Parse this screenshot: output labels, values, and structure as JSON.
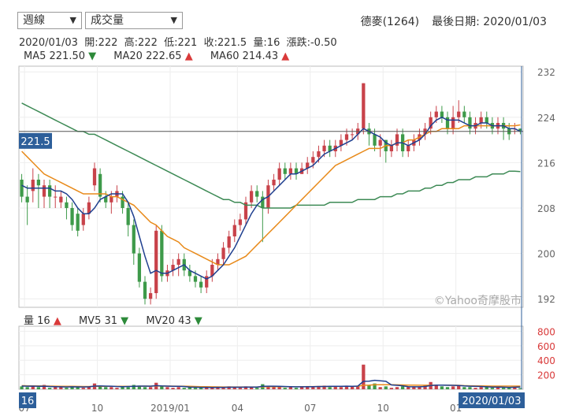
{
  "controls": {
    "period": {
      "value": "週線",
      "arrow": "▼"
    },
    "indicator": {
      "value": "成交量",
      "arrow": "▼"
    }
  },
  "stock": {
    "name": "德麥(1264)",
    "last_date_label": "最後日期: 2020/01/03"
  },
  "ohlc_line": "2020/01/03  開:222  高:222  低:221  收:221.5  量:16  漲跌:-0.50",
  "ma_legend": [
    {
      "label": "MA5 221.50",
      "arrow": "▼",
      "dir": "down",
      "color": "#1f3f8f"
    },
    {
      "label": "MA20 222.65",
      "arrow": "▲",
      "dir": "up",
      "color": "#e88a1a"
    },
    {
      "label": "MA60 214.43",
      "arrow": "▲",
      "dir": "up",
      "color": "#3d8a55"
    }
  ],
  "vol_legend": [
    {
      "label": "量 16",
      "arrow": "▲",
      "dir": "up",
      "color": "#333333"
    },
    {
      "label": "MV5 31",
      "arrow": "▼",
      "dir": "down",
      "color": "#1f3f8f"
    },
    {
      "label": "MV20 43",
      "arrow": "▼",
      "dir": "down",
      "color": "#e88a1a"
    }
  ],
  "watermark": "©Yahoo奇摩股市",
  "price_badge": "221.5",
  "volume_badge": "16",
  "date_badge": "2020/01/03",
  "colors": {
    "up": "#c8424a",
    "down": "#3e9a4a",
    "ma5": "#1f3f8f",
    "ma20": "#e88a1a",
    "ma60": "#3d8a55",
    "badge": "#2d5f9a"
  },
  "chart_data": {
    "type": "candlestick",
    "x_tick_labels": [
      "07",
      "10",
      "2019/01",
      "04",
      "07",
      "10",
      "01"
    ],
    "x_tick_index": [
      1,
      14,
      27,
      39,
      52,
      65,
      78
    ],
    "y_ticks_price": [
      192,
      200,
      208,
      216,
      224,
      232
    ],
    "y_ticks_volume": [
      200,
      400,
      600,
      800
    ],
    "price_ylim": [
      190.5,
      233
    ],
    "volume_ylim": [
      0,
      870
    ],
    "candles": [
      [
        213,
        210,
        214,
        209
      ],
      [
        210,
        209,
        212,
        205
      ],
      [
        211,
        213,
        215,
        209
      ],
      [
        213,
        212,
        214,
        208
      ],
      [
        210,
        212,
        213,
        208
      ],
      [
        212,
        210,
        213,
        208
      ],
      [
        210,
        210,
        212,
        208
      ],
      [
        209,
        210,
        211,
        208
      ],
      [
        209,
        208,
        210,
        206
      ],
      [
        208,
        205,
        209,
        204
      ],
      [
        207,
        204,
        208,
        203
      ],
      [
        205,
        207,
        208,
        204
      ],
      [
        207,
        209,
        210,
        206
      ],
      [
        212,
        215,
        216,
        211
      ],
      [
        214,
        210,
        215,
        209
      ],
      [
        210,
        209,
        211,
        208
      ],
      [
        209,
        210,
        211,
        207
      ],
      [
        210,
        211,
        212,
        209
      ],
      [
        210,
        208,
        211,
        207
      ],
      [
        208,
        205,
        209,
        203
      ],
      [
        205,
        200,
        206,
        198
      ],
      [
        200,
        195,
        201,
        194
      ],
      [
        195,
        192,
        196,
        191
      ],
      [
        192,
        193,
        194,
        191
      ],
      [
        193,
        204,
        205,
        192
      ],
      [
        204,
        196,
        205,
        195
      ],
      [
        196,
        197,
        198,
        195
      ],
      [
        197,
        198,
        199,
        196
      ],
      [
        198,
        199,
        200,
        196
      ],
      [
        199,
        197,
        200,
        196
      ],
      [
        197,
        196,
        198,
        195
      ],
      [
        196,
        195,
        197,
        194
      ],
      [
        195,
        194,
        196,
        193
      ],
      [
        194,
        196,
        197,
        193
      ],
      [
        196,
        198,
        199,
        195
      ],
      [
        198,
        199,
        200,
        197
      ],
      [
        199,
        201,
        202,
        198
      ],
      [
        201,
        203,
        204,
        200
      ],
      [
        203,
        205,
        206,
        202
      ],
      [
        205,
        206,
        207,
        204
      ],
      [
        206,
        209,
        210,
        205
      ],
      [
        209,
        211,
        212,
        208
      ],
      [
        211,
        210,
        212,
        209
      ],
      [
        210,
        208,
        211,
        202
      ],
      [
        208,
        212,
        213,
        207
      ],
      [
        212,
        213,
        214,
        211
      ],
      [
        213,
        215,
        216,
        212
      ],
      [
        215,
        214,
        216,
        213
      ],
      [
        214,
        215,
        216,
        213
      ],
      [
        215,
        214,
        216,
        213
      ],
      [
        214,
        215,
        216,
        214
      ],
      [
        215,
        216,
        217,
        214
      ],
      [
        216,
        217,
        218,
        215
      ],
      [
        217,
        218,
        219,
        216
      ],
      [
        218,
        219,
        220,
        217
      ],
      [
        219,
        218,
        220,
        217
      ],
      [
        218,
        219,
        220,
        217
      ],
      [
        219,
        220,
        221,
        218
      ],
      [
        220,
        221,
        222,
        219
      ],
      [
        221,
        221,
        222,
        220
      ],
      [
        221,
        222,
        223,
        220
      ],
      [
        222,
        230,
        230,
        221
      ],
      [
        222,
        221,
        223,
        219
      ],
      [
        221,
        219,
        222,
        218
      ],
      [
        219,
        220,
        221,
        217
      ],
      [
        220,
        218,
        220,
        216
      ],
      [
        218,
        219,
        220,
        217
      ],
      [
        219,
        221,
        222,
        218
      ],
      [
        221,
        218,
        222,
        217
      ],
      [
        218,
        219,
        220,
        217
      ],
      [
        219,
        220,
        221,
        218
      ],
      [
        220,
        221,
        222,
        219
      ],
      [
        221,
        222,
        223,
        220
      ],
      [
        222,
        224,
        225,
        221
      ],
      [
        224,
        225,
        226,
        223
      ],
      [
        225,
        224,
        226,
        223
      ],
      [
        224,
        222,
        225,
        221
      ],
      [
        222,
        224,
        226,
        221
      ],
      [
        224,
        225,
        227,
        223
      ],
      [
        225,
        224,
        226,
        223
      ],
      [
        224,
        222,
        225,
        221
      ],
      [
        222,
        223,
        224,
        221
      ],
      [
        223,
        224,
        225,
        222
      ],
      [
        224,
        223,
        225,
        222
      ],
      [
        223,
        222,
        224,
        221
      ],
      [
        222,
        223,
        224,
        221
      ],
      [
        223,
        222,
        224,
        220
      ],
      [
        222,
        221,
        223,
        220
      ],
      [
        222,
        222,
        223,
        221
      ],
      [
        222,
        221.5,
        222,
        221
      ]
    ],
    "ma5": [
      212,
      211.5,
      211.5,
      211.5,
      211.5,
      211.5,
      211,
      211,
      210.5,
      209.5,
      208,
      207,
      207,
      208,
      209.5,
      210,
      210.5,
      210.5,
      210.5,
      209,
      206.5,
      203,
      199.5,
      196.5,
      197,
      196.5,
      196.5,
      197,
      197.5,
      198,
      197,
      196.5,
      196,
      195.5,
      196,
      197,
      198,
      199.5,
      201,
      203,
      205,
      207,
      208.5,
      209.5,
      210,
      211,
      212,
      213,
      214,
      214,
      214.5,
      215,
      215.5,
      216.5,
      217.5,
      218,
      218.5,
      219,
      219.5,
      220,
      221,
      222,
      221.5,
      221,
      220.5,
      219.5,
      219,
      219.5,
      219.5,
      219,
      219.5,
      220,
      221,
      222.5,
      223.5,
      224,
      223.5,
      223.5,
      223.5,
      223,
      222.5,
      222.5,
      223,
      223,
      222.5,
      222.5,
      222.5,
      222,
      222,
      221.5
    ],
    "ma20": [
      218,
      217,
      216,
      215,
      214,
      213.5,
      213,
      212.5,
      212,
      211.5,
      211,
      210.5,
      210.5,
      210.5,
      210.5,
      210.5,
      210,
      210,
      209.5,
      209,
      208.5,
      207.5,
      206.5,
      205.5,
      205,
      204,
      203,
      202.5,
      202,
      201,
      200.5,
      200,
      199.5,
      199,
      198.5,
      198,
      198,
      198,
      198.5,
      199,
      199.5,
      200.5,
      201.5,
      202.5,
      203.5,
      204.5,
      205.5,
      206.5,
      207.5,
      208.5,
      209.5,
      210.5,
      211.5,
      212.5,
      213.5,
      214.5,
      215.5,
      216,
      216.5,
      217,
      217.5,
      218,
      218.5,
      218.5,
      218.5,
      219,
      219,
      219.5,
      219.5,
      220,
      220,
      220.5,
      221,
      221.5,
      221.5,
      222,
      222,
      222,
      222,
      222.5,
      222.5,
      222.5,
      222.5,
      222.5,
      222.5,
      222.5,
      222.5,
      222.5,
      222.5,
      222.65
    ],
    "ma60": [
      226.5,
      226,
      225.5,
      225,
      224.5,
      224,
      223.5,
      223,
      222.5,
      222,
      221.5,
      221.5,
      221,
      221,
      220.5,
      220,
      219.5,
      219,
      218.5,
      218,
      217.5,
      217,
      216.5,
      216,
      215.5,
      215,
      214.5,
      214,
      213.5,
      213,
      212.5,
      212,
      211.5,
      211,
      210.5,
      210,
      209.5,
      209.5,
      209,
      209,
      208.5,
      208.5,
      208.5,
      208,
      208,
      208,
      208,
      208,
      208,
      208.5,
      208.5,
      208.5,
      208.5,
      208.5,
      208.5,
      209,
      209,
      209,
      209,
      209,
      209.5,
      209.5,
      209.5,
      209.5,
      210,
      210,
      210,
      210.5,
      210.5,
      211,
      211,
      211,
      211.5,
      211.5,
      212,
      212,
      212.5,
      212.5,
      213,
      213,
      213,
      213.5,
      213.5,
      213.5,
      214,
      214,
      214,
      214.5,
      214.5,
      214.43
    ],
    "volume": [
      40,
      30,
      50,
      30,
      60,
      20,
      30,
      30,
      20,
      40,
      30,
      20,
      30,
      80,
      40,
      30,
      30,
      20,
      40,
      30,
      60,
      50,
      30,
      30,
      90,
      40,
      30,
      20,
      30,
      20,
      30,
      20,
      20,
      30,
      20,
      30,
      20,
      40,
      30,
      20,
      40,
      30,
      20,
      70,
      40,
      30,
      40,
      20,
      30,
      20,
      30,
      40,
      30,
      40,
      50,
      30,
      40,
      30,
      50,
      40,
      50,
      340,
      60,
      80,
      30,
      40,
      20,
      30,
      40,
      30,
      40,
      30,
      50,
      100,
      60,
      40,
      30,
      40,
      50,
      30,
      30,
      20,
      30,
      40,
      20,
      30,
      20,
      20,
      30,
      16
    ],
    "mv5": [
      45,
      42,
      44,
      40,
      42,
      38,
      36,
      34,
      32,
      34,
      33,
      31,
      34,
      44,
      46,
      44,
      42,
      38,
      36,
      38,
      40,
      44,
      44,
      42,
      50,
      46,
      44,
      40,
      40,
      38,
      30,
      28,
      26,
      26,
      24,
      26,
      26,
      28,
      28,
      28,
      30,
      30,
      30,
      40,
      42,
      42,
      40,
      38,
      36,
      34,
      34,
      36,
      36,
      38,
      38,
      40,
      40,
      40,
      42,
      40,
      44,
      110,
      112,
      124,
      116,
      110,
      60,
      54,
      48,
      36,
      34,
      34,
      38,
      52,
      58,
      58,
      56,
      54,
      52,
      46,
      42,
      40,
      38,
      34,
      30,
      30,
      28,
      26,
      28,
      31
    ],
    "mv20": [
      50,
      48,
      47,
      46,
      45,
      44,
      42,
      41,
      40,
      40,
      39,
      38,
      38,
      40,
      41,
      41,
      41,
      40,
      40,
      40,
      41,
      42,
      43,
      43,
      45,
      45,
      44,
      43,
      42,
      42,
      40,
      38,
      36,
      35,
      34,
      33,
      32,
      32,
      31,
      31,
      32,
      32,
      32,
      34,
      35,
      36,
      36,
      36,
      36,
      36,
      36,
      37,
      37,
      38,
      38,
      38,
      39,
      39,
      40,
      40,
      41,
      55,
      58,
      62,
      62,
      63,
      62,
      61,
      60,
      58,
      57,
      56,
      55,
      56,
      57,
      57,
      56,
      55,
      54,
      50,
      48,
      47,
      46,
      45,
      44,
      44,
      43,
      43,
      43,
      43
    ]
  }
}
